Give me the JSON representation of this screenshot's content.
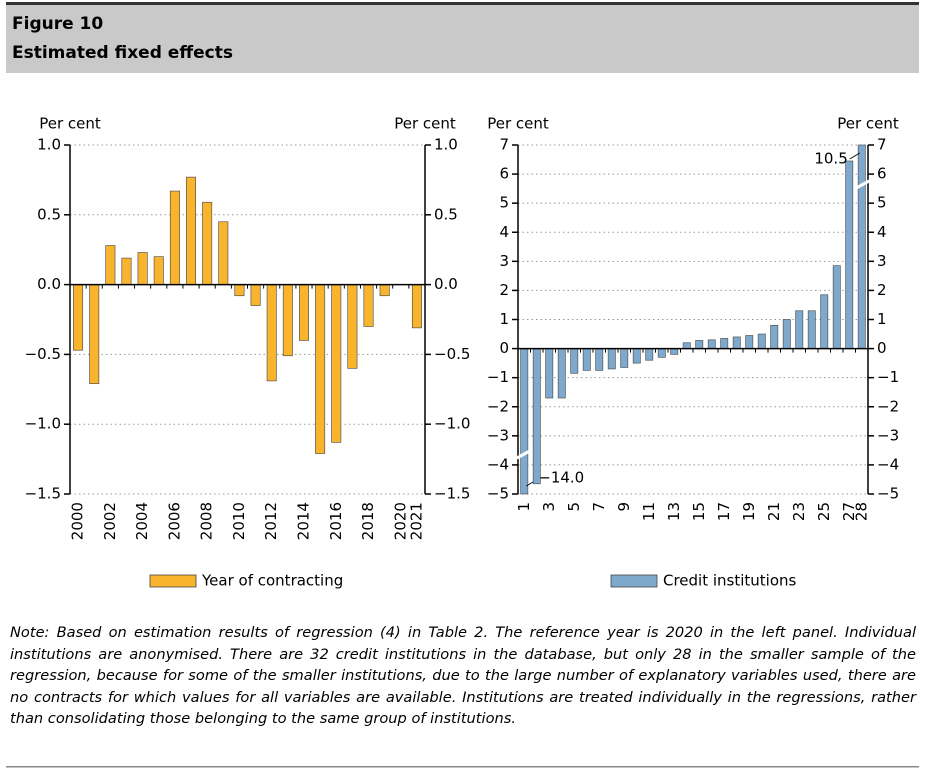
{
  "header": {
    "figure": "Figure 10",
    "title": "Estimated fixed effects"
  },
  "chart_data": [
    {
      "type": "bar",
      "ylabel": "Per cent",
      "y2label": "Per cent",
      "categories": [
        "2000",
        null,
        "2002",
        null,
        "2004",
        null,
        "2006",
        null,
        "2008",
        null,
        "2010",
        null,
        "2012",
        null,
        "2014",
        null,
        "2016",
        null,
        "2018",
        null,
        "2020",
        "2021"
      ],
      "series": [
        {
          "name": "Year of contracting",
          "color": "#f7b42c",
          "values": [
            -0.47,
            -0.71,
            0.28,
            0.19,
            0.23,
            0.2,
            0.67,
            0.77,
            0.59,
            0.45,
            -0.08,
            -0.15,
            -0.69,
            -0.51,
            -0.4,
            -1.21,
            -1.13,
            -0.6,
            -0.3,
            -0.08,
            null,
            -0.31
          ]
        }
      ],
      "ylim": [
        -1.5,
        1.0
      ],
      "yticks": [
        {
          "value": -1.5,
          "label": "−1.5"
        },
        {
          "value": -1.0,
          "label": "−1.0"
        },
        {
          "value": -0.5,
          "label": "−0.5"
        },
        {
          "value": 0,
          "label": "0.0"
        },
        {
          "value": 0.5,
          "label": "0.5"
        },
        {
          "value": 1.0,
          "label": "1.0"
        }
      ],
      "grid": true
    },
    {
      "type": "bar",
      "ylabel": "Per cent",
      "y2label": "Per cent",
      "categories": [
        "1",
        null,
        "3",
        null,
        "5",
        null,
        "7",
        null,
        "9",
        null,
        "11",
        null,
        "13",
        null,
        "15",
        null,
        "17",
        null,
        "19",
        null,
        "21",
        null,
        "23",
        null,
        "25",
        null,
        "27",
        "28"
      ],
      "series": [
        {
          "name": "Credit institutions",
          "color": "#7ea9cc",
          "values": [
            -14.0,
            -4.65,
            -1.7,
            -1.7,
            -0.85,
            -0.75,
            -0.75,
            -0.7,
            -0.65,
            -0.5,
            -0.4,
            -0.3,
            -0.2,
            0.2,
            0.28,
            0.3,
            0.35,
            0.4,
            0.45,
            0.5,
            0.8,
            1.0,
            1.3,
            1.3,
            1.85,
            2.85,
            6.45,
            10.5
          ],
          "value_labels": [
            "−14.0",
            null,
            null,
            null,
            null,
            null,
            null,
            null,
            null,
            null,
            null,
            null,
            null,
            null,
            null,
            null,
            null,
            null,
            null,
            null,
            null,
            null,
            null,
            null,
            null,
            null,
            null,
            "10.5"
          ]
        }
      ],
      "ylim": [
        -5,
        7
      ],
      "yticks": [
        {
          "value": -5,
          "label": "−5"
        },
        {
          "value": -4,
          "label": "−4"
        },
        {
          "value": -3,
          "label": "−3"
        },
        {
          "value": -2,
          "label": "−2"
        },
        {
          "value": -1,
          "label": "−1"
        },
        0,
        1,
        2,
        3,
        4,
        5,
        6,
        7
      ],
      "grid": true
    }
  ],
  "note": "Note: Based on estimation results of regression (4) in Table 2. The reference year is 2020 in the left panel. Individual institutions are anonymised. There are 32 credit institutions in the database, but only 28 in the smaller sample of the regression, because for some of the smaller institutions, due to the large number of explanatory variables used, there are no contracts for which values for all variables are available. Institutions are treated individually in the regressions, rather than consolidating those belonging to the same group of institutions."
}
